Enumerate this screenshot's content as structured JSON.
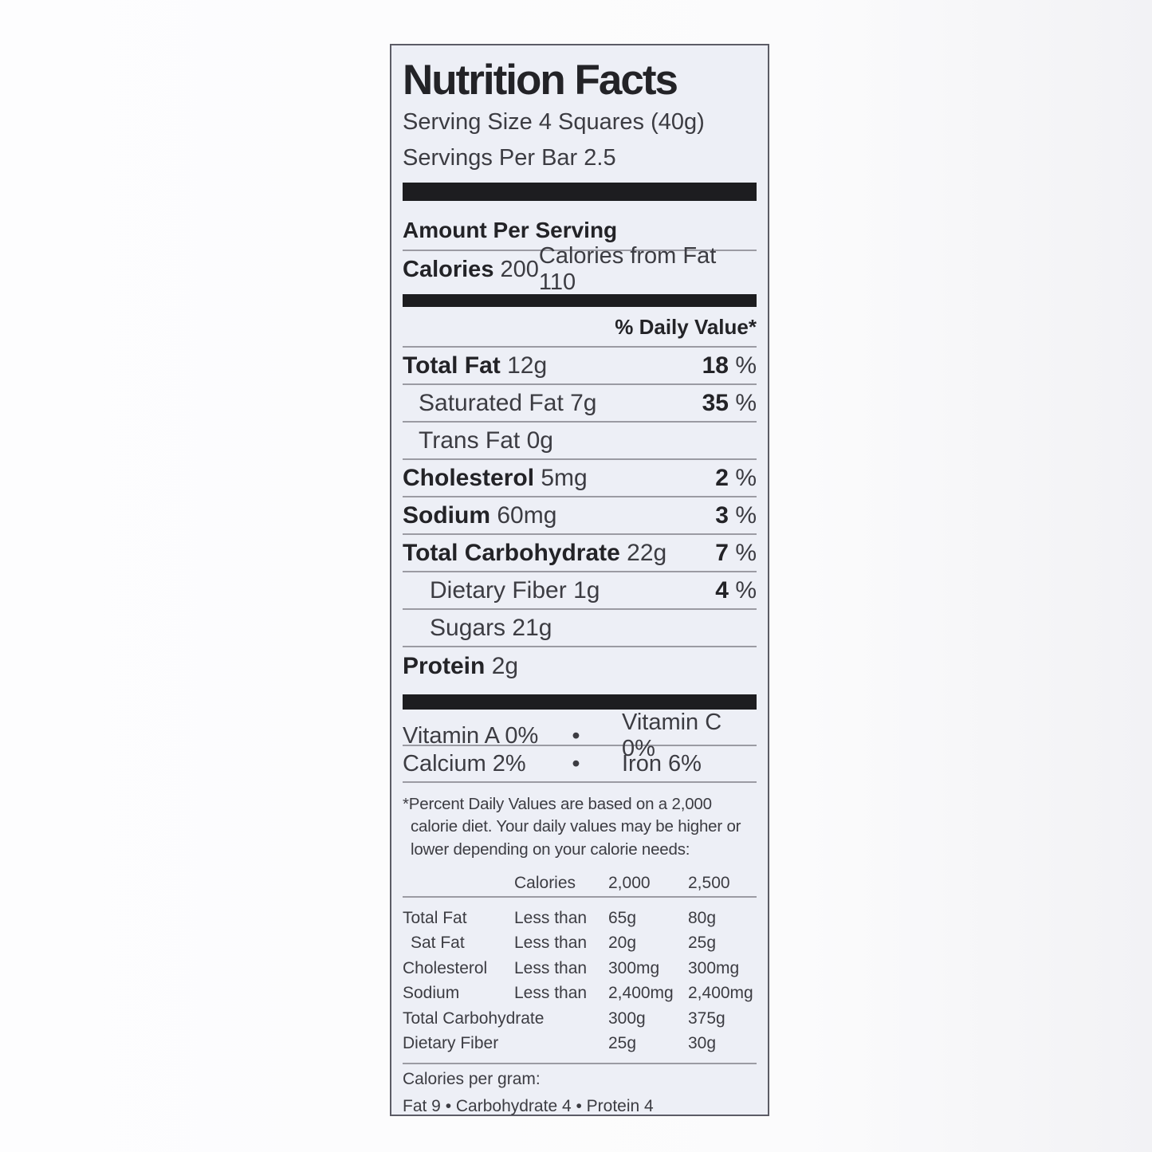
{
  "colors": {
    "panel_bg": "#edeff6",
    "border": "#5c5c66",
    "bar": "#1d1d20"
  },
  "label": {
    "title": "Nutrition Facts",
    "serving_size": "Serving Size 4 Squares (40g)",
    "servings_per": "Servings Per Bar 2.5",
    "amount_per_serving": "Amount Per Serving",
    "calories": {
      "label": "Calories",
      "value": "200",
      "from_fat": "Calories from Fat 110"
    },
    "daily_value_header": "% Daily Value*",
    "nutrients": [
      {
        "name": "Total Fat",
        "amount": "12g",
        "dv_num": "18",
        "dv_pct": "%"
      },
      {
        "name": "Saturated Fat",
        "amount": "7g",
        "dv_num": "35",
        "dv_pct": "%"
      },
      {
        "name": "Trans Fat",
        "amount": "0g"
      },
      {
        "name": "Cholesterol",
        "amount": "5mg",
        "dv_num": "2",
        "dv_pct": "%"
      },
      {
        "name": "Sodium",
        "amount": "60mg",
        "dv_num": "3",
        "dv_pct": "%"
      },
      {
        "name": "Total Carbohydrate",
        "amount": "22g",
        "dv_num": "7",
        "dv_pct": "%"
      },
      {
        "name": "Dietary Fiber",
        "amount": "1g",
        "dv_num": "4",
        "dv_pct": "%"
      },
      {
        "name": "Sugars",
        "amount": "21g"
      },
      {
        "name": "Protein",
        "amount": "2g"
      }
    ],
    "vitamins": [
      {
        "left": "Vitamin A 0%",
        "bullet": "•",
        "right": "Vitamin C 0%"
      },
      {
        "left": "Calcium 2%",
        "bullet": "•",
        "right": "Iron 6%"
      }
    ],
    "footnote": "*Percent Daily Values are based on a 2,000 calorie diet. Your daily values may be higher or lower depending on your calorie needs:",
    "dv_table": {
      "header": {
        "col1": "Calories",
        "col2": "2,000",
        "col3": "2,500"
      },
      "rows": [
        {
          "name": "Total Fat",
          "qual": "Less than",
          "v1": "65g",
          "v2": "80g"
        },
        {
          "name": "Sat Fat",
          "qual": "Less than",
          "v1": "20g",
          "v2": "25g"
        },
        {
          "name": "Cholesterol",
          "qual": "Less than",
          "v1": "300mg",
          "v2": "300mg"
        },
        {
          "name": "Sodium",
          "qual": "Less than",
          "v1": "2,400mg",
          "v2": "2,400mg"
        },
        {
          "name": "Total Carbohydrate",
          "v1": "300g",
          "v2": "375g"
        },
        {
          "name": "Dietary Fiber",
          "v1": "25g",
          "v2": "30g"
        }
      ]
    },
    "calories_per_gram": {
      "heading": "Calories per gram:",
      "line": "Fat 9 • Carbohydrate 4 • Protein 4"
    }
  }
}
